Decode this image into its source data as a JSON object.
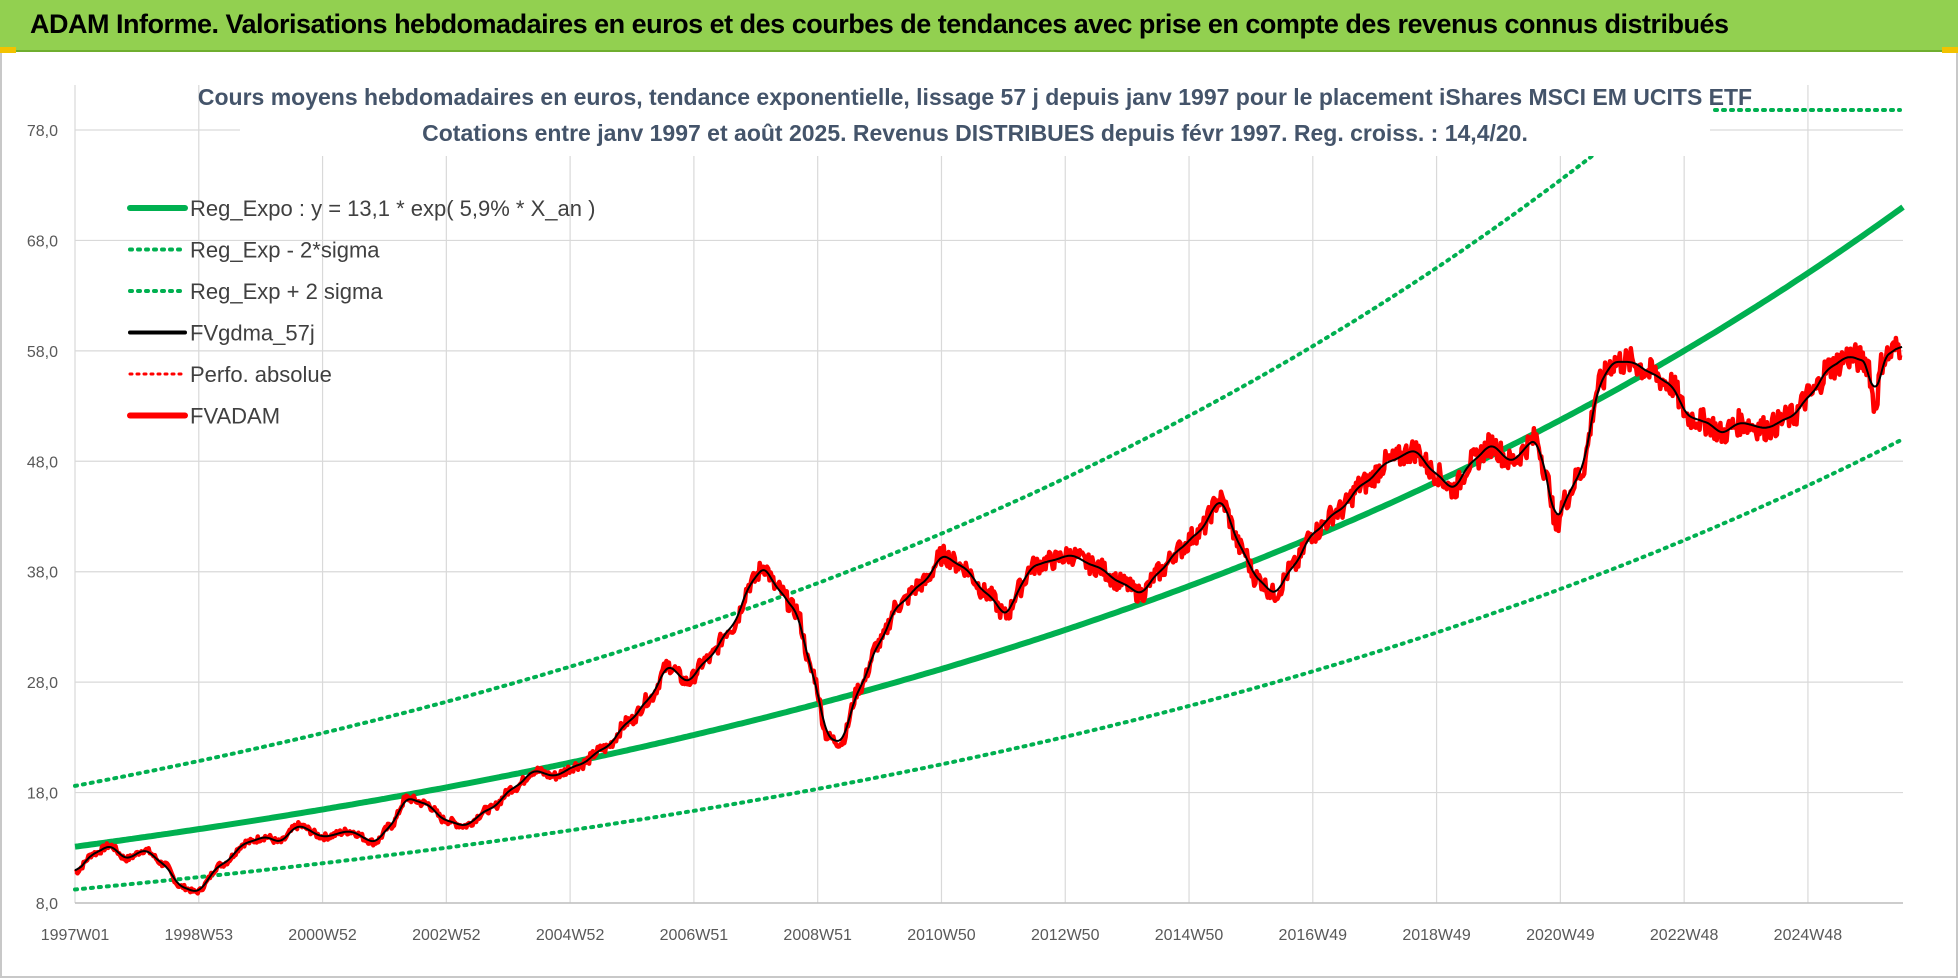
{
  "header": {
    "title": "ADAM Informe. Valorisations hebdomadaires en euros et des courbes de tendances avec prise en compte des revenus connus distribués"
  },
  "colors": {
    "banner": "#92d050",
    "trend": "#00b050",
    "fvgdma": "#000000",
    "fvadam": "#ff0000",
    "perfo": "#ff0000"
  },
  "chart_data": {
    "type": "line",
    "title": "Cours moyens hebdomadaires en euros, tendance exponentielle, lissage 57 j depuis janv 1997 pour le placement iShares MSCI EM UCITS ETF",
    "subtitle": "Cotations entre janv 1997 et août 2025. Revenus DISTRIBUES depuis févr 1997. Reg. croiss. : 14,4/20.",
    "xlabel": "",
    "ylabel": "",
    "x_ticks": [
      "1997W01",
      "1998W53",
      "2000W52",
      "2002W52",
      "2004W52",
      "2006W51",
      "2008W51",
      "2010W50",
      "2012W50",
      "2014W50",
      "2016W49",
      "2018W49",
      "2020W49",
      "2022W48",
      "2024W48"
    ],
    "y_ticks": [
      "8,0",
      "18,0",
      "28,0",
      "38,0",
      "48,0",
      "58,0",
      "68,0",
      "78,0"
    ],
    "xlim": [
      1997.0,
      2025.65
    ],
    "ylim": [
      8,
      80
    ],
    "grid": true,
    "legend_position": "top-left",
    "trend_model": {
      "a": 13.1,
      "rate": 0.059,
      "sigma_factor": 1.42
    },
    "series": [
      {
        "name": "Reg_Expo : y = 13,1 * exp( 5,9% *  X_an )",
        "style": "solid-thick",
        "color": "#00b050",
        "source": "trend"
      },
      {
        "name": "Reg_Exp - 2*sigma",
        "style": "dotted",
        "color": "#00b050",
        "source": "trend_low"
      },
      {
        "name": "Reg_Exp + 2 sigma",
        "style": "dotted",
        "color": "#00b050",
        "source": "trend_high"
      },
      {
        "name": "FVgdma_57j",
        "style": "solid",
        "color": "#000000",
        "source": "smooth"
      },
      {
        "name": "Perfo. absolue",
        "style": "dotted",
        "color": "#ff0000",
        "source": "none"
      },
      {
        "name": "FVADAM",
        "style": "solid-thick",
        "color": "#ff0000",
        "source": "fvadam"
      }
    ],
    "fvadam": {
      "x": [
        1997.0,
        1997.3,
        1997.55,
        1997.8,
        1998.1,
        1998.4,
        1998.65,
        1998.9,
        1999.3,
        1999.7,
        2000.0,
        2000.2,
        2000.5,
        2000.9,
        2001.3,
        2001.7,
        2001.95,
        2002.2,
        2002.5,
        2002.8,
        2003.1,
        2003.5,
        2003.9,
        2004.2,
        2004.5,
        2004.9,
        2005.3,
        2005.7,
        2006.0,
        2006.3,
        2006.6,
        2006.9,
        2007.3,
        2007.6,
        2007.8,
        2008.0,
        2008.3,
        2008.55,
        2008.8,
        2009.0,
        2009.3,
        2009.6,
        2009.9,
        2010.3,
        2010.6,
        2010.9,
        2011.3,
        2011.6,
        2011.8,
        2012.0,
        2012.3,
        2012.6,
        2013.0,
        2013.4,
        2013.7,
        2014.0,
        2014.3,
        2014.6,
        2014.95,
        2015.3,
        2015.5,
        2015.8,
        2016.1,
        2016.4,
        2016.8,
        2017.2,
        2017.6,
        2018.0,
        2018.3,
        2018.6,
        2018.9,
        2019.2,
        2019.5,
        2019.9,
        2020.1,
        2020.2,
        2020.35,
        2020.6,
        2020.9,
        2021.1,
        2021.4,
        2021.7,
        2022.0,
        2022.3,
        2022.6,
        2022.8,
        2023.1,
        2023.5,
        2023.9,
        2024.2,
        2024.5,
        2024.8,
        2025.1,
        2025.2,
        2025.35,
        2025.65
      ],
      "y": [
        10.8,
        12.5,
        13.2,
        12.0,
        12.8,
        11.5,
        9.5,
        9.0,
        11.5,
        13.5,
        14.0,
        13.5,
        15.0,
        14.0,
        14.5,
        13.5,
        15.0,
        17.5,
        17.0,
        15.5,
        15.0,
        16.5,
        18.5,
        20.0,
        19.5,
        20.5,
        22.0,
        24.5,
        26.5,
        29.5,
        28.0,
        30.0,
        33.0,
        37.0,
        38.5,
        36.5,
        34.5,
        29.0,
        23.0,
        22.5,
        27.5,
        31.5,
        35.0,
        37.0,
        39.5,
        38.5,
        36.0,
        34.0,
        36.5,
        38.5,
        39.0,
        39.5,
        38.5,
        37.0,
        36.0,
        38.0,
        40.0,
        41.5,
        44.5,
        40.0,
        37.5,
        36.0,
        38.5,
        41.5,
        43.5,
        46.0,
        48.0,
        49.0,
        47.0,
        45.5,
        48.0,
        49.5,
        48.0,
        50.0,
        46.0,
        42.0,
        44.5,
        47.0,
        55.0,
        57.0,
        57.0,
        56.0,
        55.0,
        52.0,
        51.5,
        50.5,
        51.5,
        51.0,
        52.0,
        54.0,
        56.5,
        57.5,
        57.0,
        53.0,
        57.5,
        58.5
      ]
    }
  },
  "legend": [
    {
      "label": "Reg_Expo : y = 13,1 * exp( 5,9% *  X_an )"
    },
    {
      "label": "Reg_Exp - 2*sigma"
    },
    {
      "label": "Reg_Exp + 2 sigma"
    },
    {
      "label": "FVgdma_57j"
    },
    {
      "label": "Perfo. absolue"
    },
    {
      "label": "FVADAM"
    }
  ]
}
